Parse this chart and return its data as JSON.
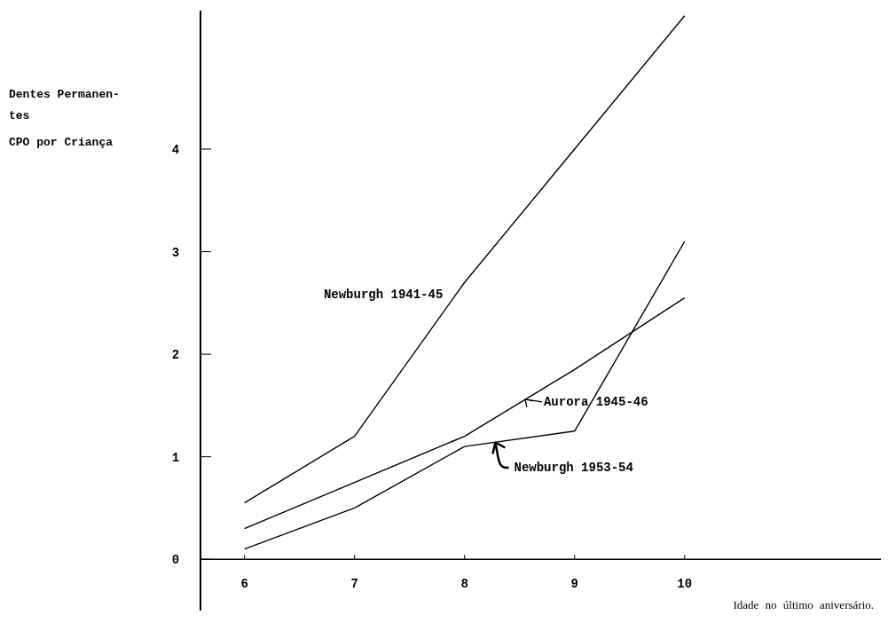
{
  "chart_data": {
    "type": "line",
    "xlabel": "Idade no último aniversário.",
    "ylabel": "Dentes Permanen-\ntes\nCPO por Criança",
    "x": [
      6,
      7,
      8,
      9,
      10
    ],
    "series": [
      {
        "name": "Newburgh 1941-45",
        "color": "#000000",
        "values": [
          0.55,
          1.2,
          2.7,
          4.0,
          5.3
        ]
      },
      {
        "name": "Aurora 1945-46",
        "color": "#000000",
        "values": [
          0.3,
          0.75,
          1.2,
          1.85,
          2.55
        ]
      },
      {
        "name": "Newburgh 1953-54",
        "color": "#000000",
        "values": [
          0.1,
          0.5,
          1.1,
          1.25,
          3.1
        ]
      }
    ],
    "xlim": [
      5.6,
      11.8
    ],
    "ylim": [
      -0.5,
      5.35
    ],
    "xticks": [
      6,
      7,
      8,
      9,
      10
    ],
    "yticks": [
      0,
      1,
      2,
      3,
      4
    ],
    "grid": false,
    "line_style": "solid"
  }
}
